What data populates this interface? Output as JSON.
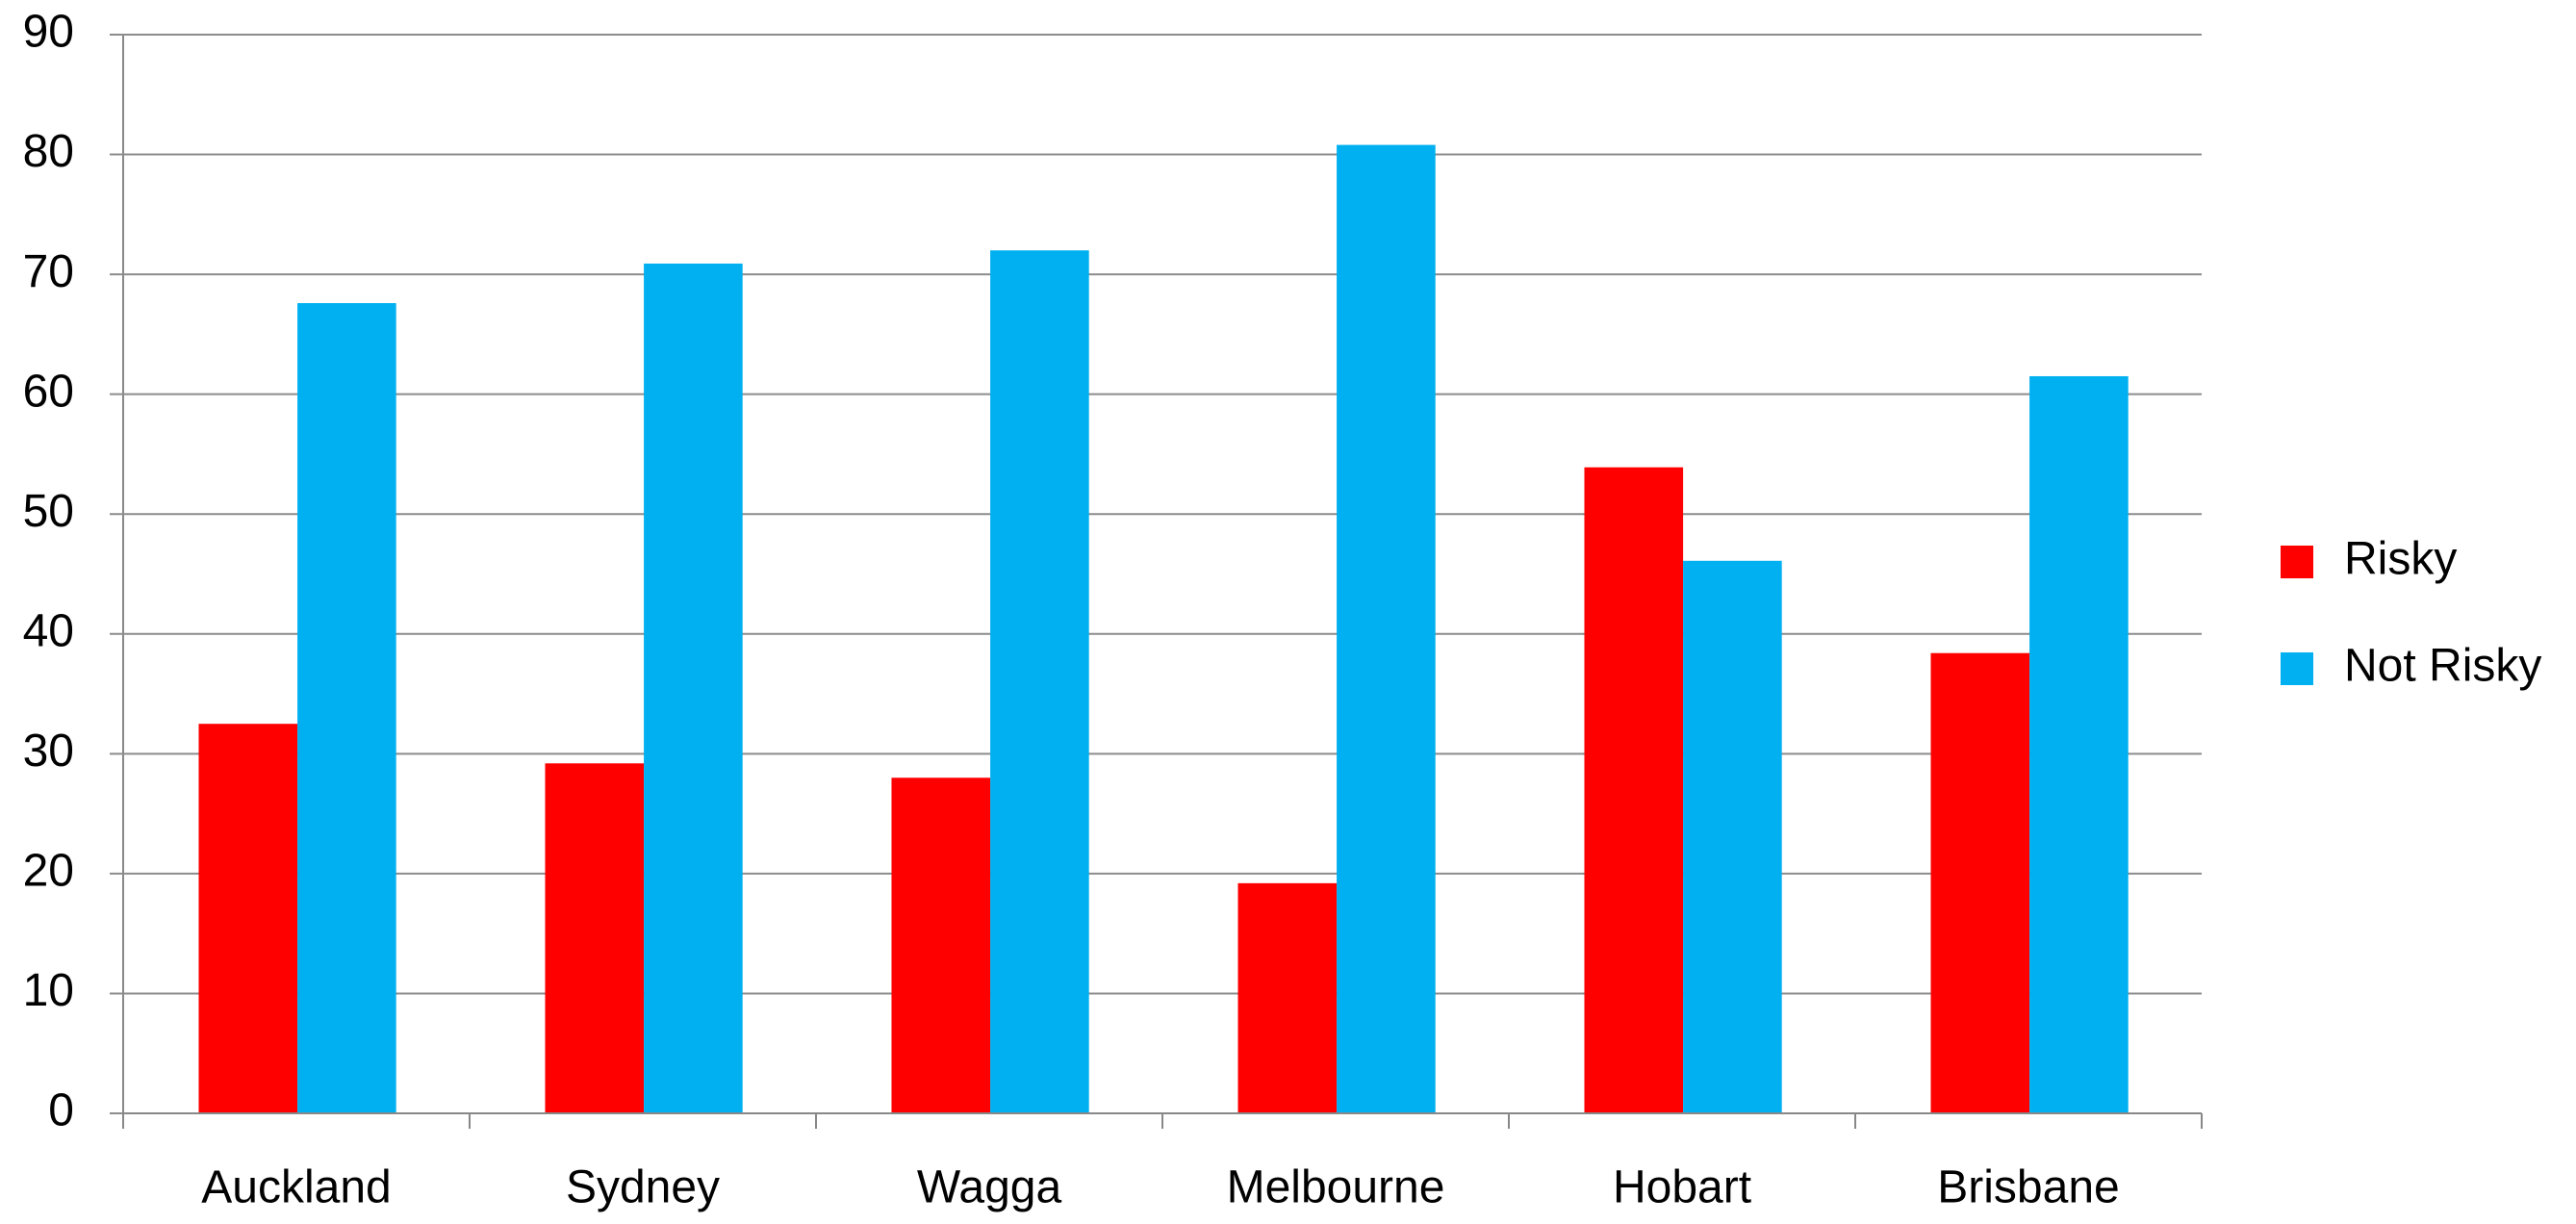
{
  "chart_data": {
    "type": "bar",
    "categories": [
      "Auckland",
      "Sydney",
      "Wagga",
      "Melbourne",
      "Hobart",
      "Brisbane"
    ],
    "series": [
      {
        "name": "Risky",
        "color": "#ff0000",
        "values": [
          32.5,
          29.2,
          28,
          19.2,
          53.9,
          38.4
        ]
      },
      {
        "name": "Not Risky",
        "color": "#00b0f0",
        "values": [
          67.6,
          70.9,
          72,
          80.8,
          46.1,
          61.5
        ]
      }
    ],
    "ylim": [
      0,
      90
    ],
    "yticks": [
      0,
      10,
      20,
      30,
      40,
      50,
      60,
      70,
      80,
      90
    ],
    "grid": true,
    "legend": "right"
  }
}
